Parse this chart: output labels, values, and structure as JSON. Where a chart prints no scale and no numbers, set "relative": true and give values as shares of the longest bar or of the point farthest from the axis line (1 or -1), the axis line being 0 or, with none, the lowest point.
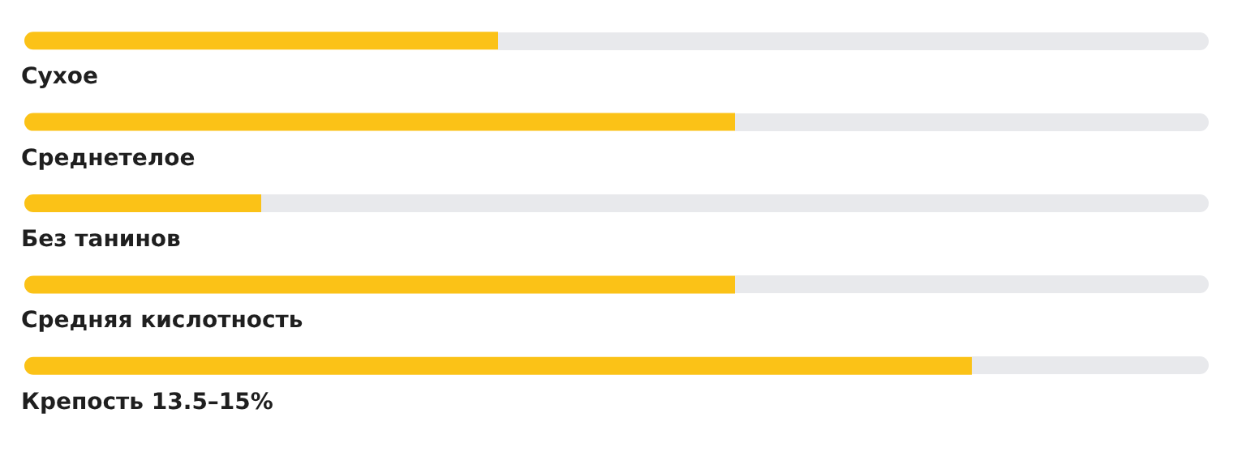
{
  "chart_data": {
    "type": "bar",
    "orientation": "horizontal",
    "relative": true,
    "categories": [
      "Сухое",
      "Среднетелое",
      "Без танинов",
      "Средняя кислотность",
      "Крепость 13.5–15%"
    ],
    "values": [
      0.5,
      0.75,
      0.25,
      0.75,
      1
    ],
    "color": "#fbc217"
  }
}
